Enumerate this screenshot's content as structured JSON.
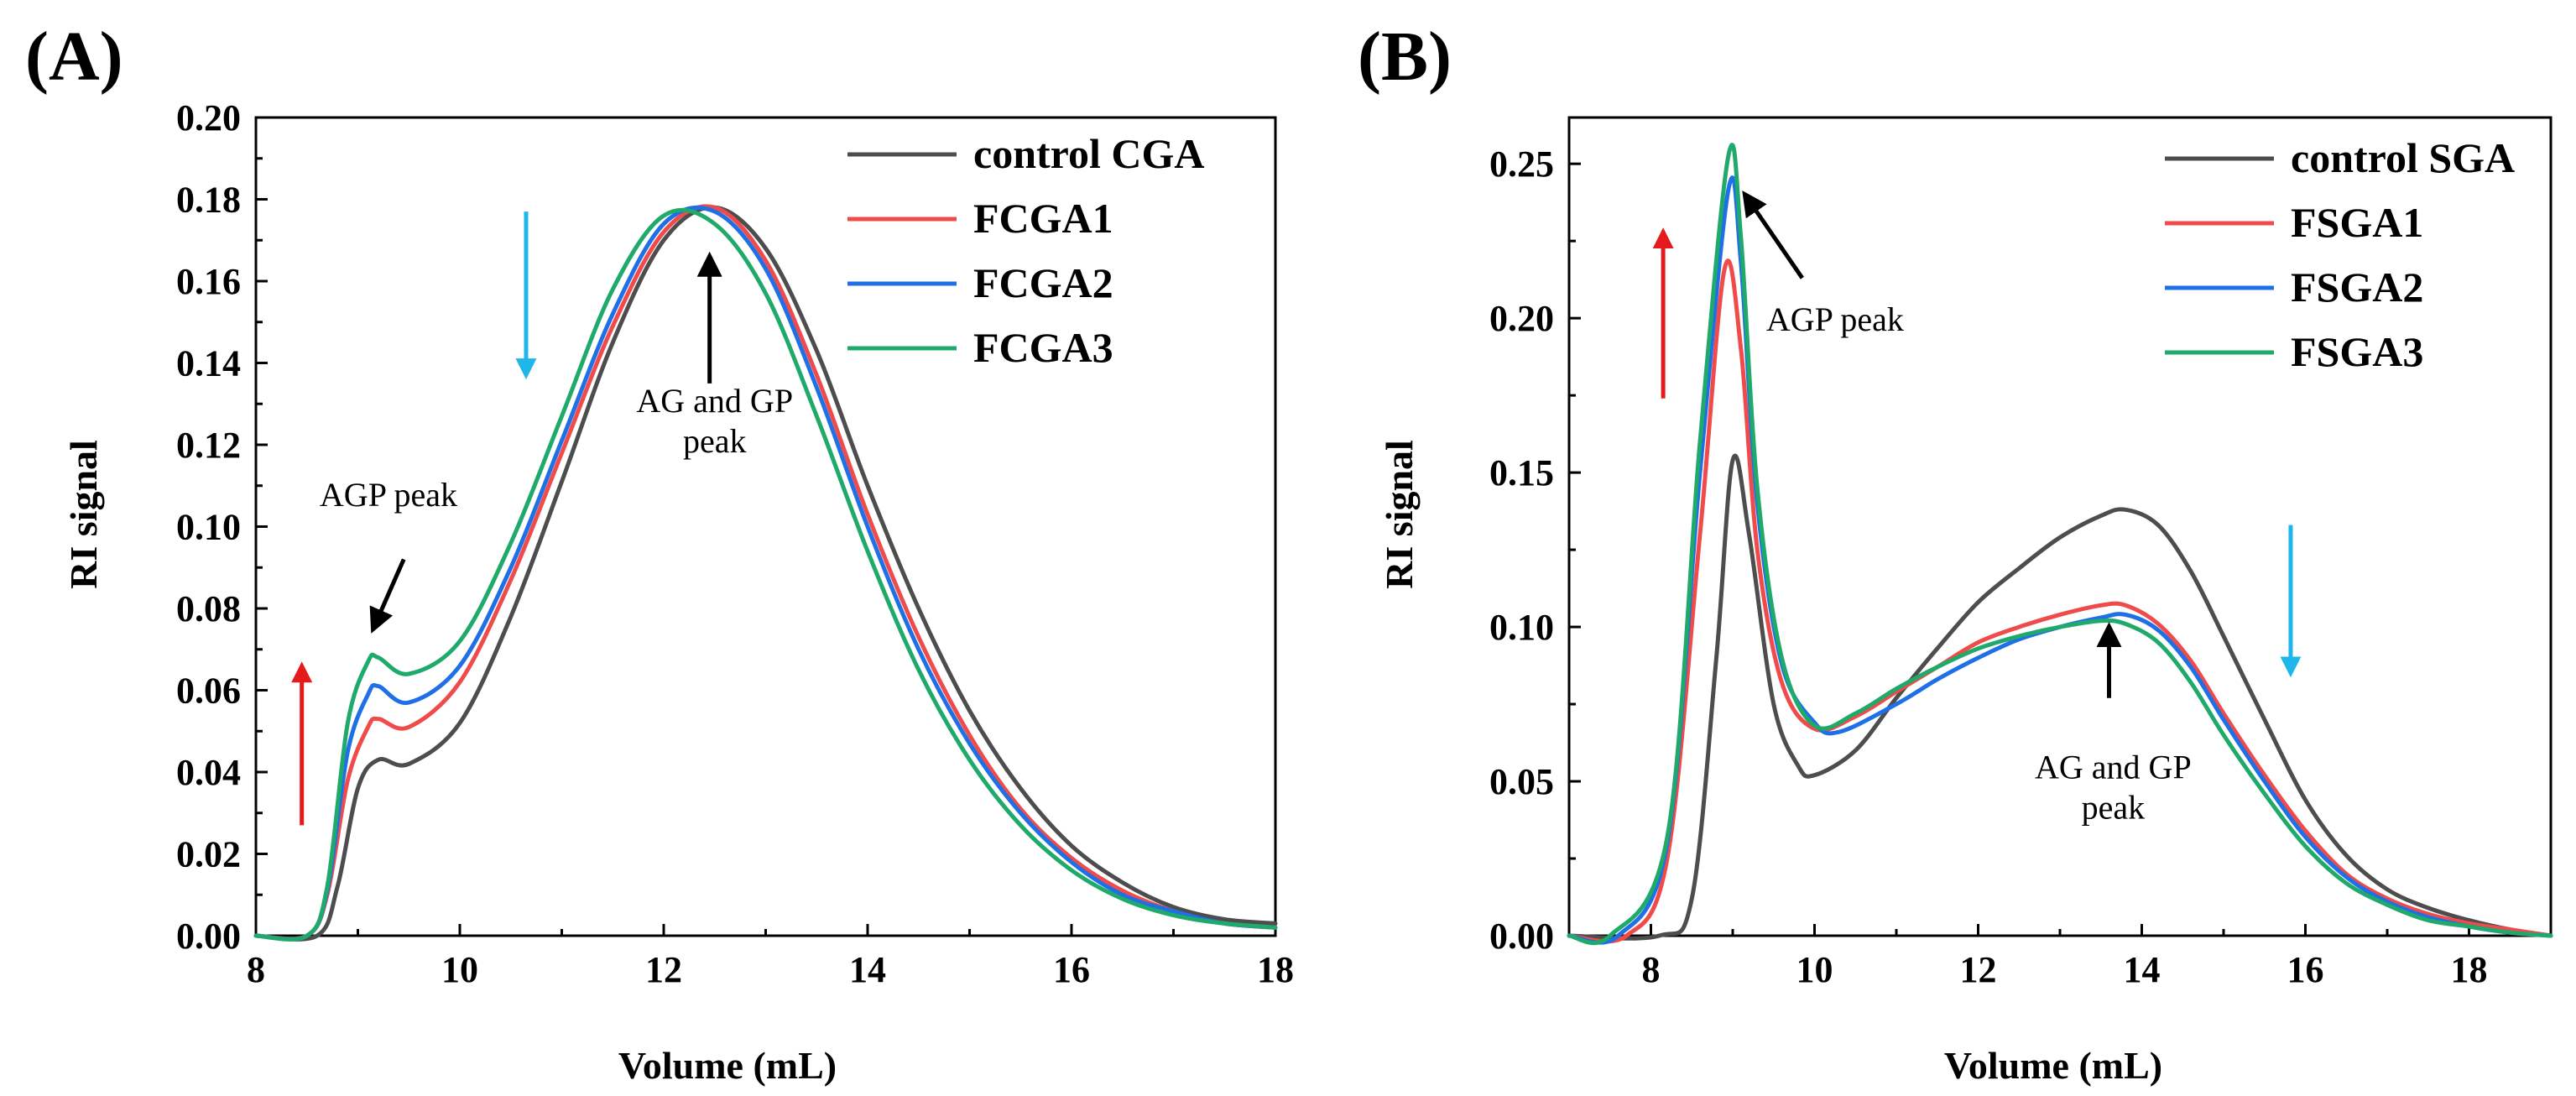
{
  "chart_data": [
    {
      "type": "line",
      "panel": "(A)",
      "xlabel": "Volume (mL)",
      "ylabel": "RI signal",
      "xlim": [
        8,
        18
      ],
      "ylim": [
        0,
        0.2
      ],
      "xticks": [
        8,
        10,
        12,
        14,
        16,
        18
      ],
      "xtick_labels": [
        "8",
        "10",
        "12",
        "14",
        "16",
        "18"
      ],
      "yticks": [
        0,
        0.02,
        0.04,
        0.06,
        0.08,
        0.1,
        0.12,
        0.14,
        0.16,
        0.18,
        0.2
      ],
      "ytick_labels": [
        "0.00",
        "0.02",
        "0.04",
        "0.06",
        "0.08",
        "0.10",
        "0.12",
        "0.14",
        "0.16",
        "0.18",
        "0.20"
      ],
      "legend_position": "top-right",
      "series": [
        {
          "name": "control CGA",
          "color": "#4d4d4d",
          "x": [
            8.0,
            8.6,
            8.8,
            9.0,
            9.2,
            9.5,
            10.0,
            10.5,
            11.0,
            11.5,
            12.0,
            12.5,
            13.0,
            13.5,
            14.0,
            14.5,
            15.0,
            15.5,
            16.0,
            16.5,
            17.0,
            17.5,
            18.0
          ],
          "y": [
            0.0,
            0.0,
            0.012,
            0.036,
            0.043,
            0.042,
            0.052,
            0.078,
            0.111,
            0.145,
            0.17,
            0.178,
            0.168,
            0.143,
            0.11,
            0.08,
            0.055,
            0.036,
            0.022,
            0.013,
            0.007,
            0.004,
            0.003
          ]
        },
        {
          "name": "FCGA1",
          "color": "#ef4b4b",
          "x": [
            8.0,
            8.5,
            8.7,
            8.9,
            9.1,
            9.2,
            9.5,
            10.0,
            10.5,
            11.0,
            11.5,
            12.0,
            12.5,
            13.0,
            13.5,
            14.0,
            14.5,
            15.0,
            15.5,
            16.0,
            16.5,
            17.0,
            17.5,
            18.0
          ],
          "y": [
            0.0,
            0.0,
            0.01,
            0.038,
            0.051,
            0.053,
            0.051,
            0.062,
            0.087,
            0.118,
            0.149,
            0.172,
            0.178,
            0.165,
            0.137,
            0.103,
            0.073,
            0.049,
            0.031,
            0.019,
            0.011,
            0.006,
            0.003,
            0.002
          ]
        },
        {
          "name": "FCGA2",
          "color": "#1f6fe6",
          "x": [
            8.0,
            8.5,
            8.7,
            8.9,
            9.1,
            9.2,
            9.5,
            10.0,
            10.5,
            11.0,
            11.5,
            12.0,
            12.5,
            13.0,
            13.5,
            14.0,
            14.5,
            15.0,
            15.5,
            16.0,
            16.5,
            17.0,
            17.5,
            18.0
          ],
          "y": [
            0.0,
            0.0,
            0.011,
            0.045,
            0.059,
            0.061,
            0.057,
            0.066,
            0.09,
            0.121,
            0.152,
            0.174,
            0.177,
            0.163,
            0.134,
            0.1,
            0.07,
            0.047,
            0.03,
            0.018,
            0.01,
            0.006,
            0.003,
            0.002
          ]
        },
        {
          "name": "FCGA3",
          "color": "#1faa6b",
          "x": [
            8.0,
            8.5,
            8.7,
            8.9,
            9.1,
            9.2,
            9.5,
            10.0,
            10.5,
            11.0,
            11.5,
            12.0,
            12.5,
            13.0,
            13.5,
            14.0,
            14.5,
            15.0,
            15.5,
            16.0,
            16.5,
            17.0,
            17.5,
            18.0
          ],
          "y": [
            0.0,
            0.0,
            0.012,
            0.052,
            0.067,
            0.068,
            0.064,
            0.072,
            0.096,
            0.127,
            0.158,
            0.176,
            0.174,
            0.157,
            0.127,
            0.094,
            0.065,
            0.043,
            0.027,
            0.016,
            0.009,
            0.005,
            0.003,
            0.002
          ]
        }
      ],
      "annotations": [
        {
          "text_lines": [
            "AGP peak"
          ],
          "x": 9.3,
          "y": 0.105
        },
        {
          "text_lines": [
            "AG and GP",
            "peak"
          ],
          "x": 12.5,
          "y": 0.128
        }
      ],
      "indicator_arrows": [
        {
          "color": "#e41a1c",
          "direction": "up",
          "x": 8.45,
          "y_from": 0.027,
          "y_to": 0.066
        },
        {
          "color": "#1fb7ea",
          "direction": "down",
          "x": 10.65,
          "y_from": 0.177,
          "y_to": 0.137
        },
        {
          "color": "#000000",
          "direction": "down-left",
          "x_from": 9.45,
          "y_from": 0.092,
          "x_to": 9.15,
          "y_to": 0.075
        },
        {
          "color": "#000000",
          "direction": "up",
          "x": 12.45,
          "y_from": 0.135,
          "y_to": 0.166
        }
      ]
    },
    {
      "type": "line",
      "panel": "(B)",
      "xlabel": "Volume (mL)",
      "ylabel": "RI signal",
      "xlim": [
        7,
        19
      ],
      "ylim": [
        0,
        0.265
      ],
      "xticks": [
        8,
        10,
        12,
        14,
        16,
        18
      ],
      "xtick_labels": [
        "8",
        "10",
        "12",
        "14",
        "16",
        "18"
      ],
      "yticks": [
        0,
        0.05,
        0.1,
        0.15,
        0.2,
        0.25
      ],
      "ytick_labels": [
        "0.00",
        "0.05",
        "0.10",
        "0.15",
        "0.20",
        "0.25"
      ],
      "legend_position": "top-right",
      "series": [
        {
          "name": "control SGA",
          "color": "#4d4d4d",
          "x": [
            7.0,
            8.1,
            8.5,
            8.8,
            9.0,
            9.2,
            9.5,
            9.8,
            10.0,
            10.5,
            11.0,
            11.5,
            12.0,
            12.5,
            13.0,
            13.5,
            13.8,
            14.2,
            14.6,
            15.0,
            15.5,
            16.0,
            16.5,
            17.0,
            17.5,
            18.0,
            18.5,
            19.0
          ],
          "y": [
            0.0,
            0.0,
            0.012,
            0.09,
            0.154,
            0.13,
            0.075,
            0.055,
            0.052,
            0.06,
            0.077,
            0.093,
            0.108,
            0.119,
            0.129,
            0.136,
            0.138,
            0.133,
            0.118,
            0.097,
            0.07,
            0.044,
            0.026,
            0.015,
            0.009,
            0.005,
            0.002,
            0.0
          ]
        },
        {
          "name": "FSGA1",
          "color": "#ef4b4b",
          "x": [
            7.0,
            7.7,
            8.2,
            8.6,
            8.9,
            9.1,
            9.3,
            9.6,
            10.0,
            10.5,
            11.0,
            11.5,
            12.0,
            12.5,
            13.0,
            13.5,
            13.8,
            14.2,
            14.6,
            15.0,
            15.5,
            16.0,
            16.5,
            17.0,
            17.5,
            18.0,
            18.5,
            19.0
          ],
          "y": [
            0.0,
            0.0,
            0.025,
            0.13,
            0.216,
            0.19,
            0.125,
            0.082,
            0.067,
            0.071,
            0.079,
            0.087,
            0.095,
            0.1,
            0.104,
            0.107,
            0.107,
            0.101,
            0.089,
            0.072,
            0.052,
            0.034,
            0.02,
            0.012,
            0.007,
            0.004,
            0.002,
            0.0
          ]
        },
        {
          "name": "FSGA2",
          "color": "#1f6fe6",
          "x": [
            7.0,
            7.6,
            8.2,
            8.6,
            8.95,
            9.1,
            9.3,
            9.6,
            10.0,
            10.3,
            11.0,
            11.5,
            12.0,
            12.5,
            13.0,
            13.5,
            13.8,
            14.2,
            14.6,
            15.0,
            15.5,
            16.0,
            16.5,
            17.0,
            17.5,
            18.0,
            18.5,
            19.0
          ],
          "y": [
            0.0,
            0.0,
            0.03,
            0.15,
            0.242,
            0.218,
            0.14,
            0.088,
            0.069,
            0.066,
            0.075,
            0.083,
            0.09,
            0.096,
            0.1,
            0.103,
            0.104,
            0.099,
            0.087,
            0.07,
            0.05,
            0.032,
            0.019,
            0.011,
            0.006,
            0.003,
            0.001,
            0.0
          ]
        },
        {
          "name": "FSGA3",
          "color": "#1faa6b",
          "x": [
            7.0,
            7.5,
            8.2,
            8.6,
            8.95,
            9.1,
            9.3,
            9.6,
            10.0,
            10.5,
            11.0,
            11.5,
            12.0,
            12.5,
            13.0,
            13.5,
            13.8,
            14.2,
            14.6,
            15.0,
            15.5,
            16.0,
            16.5,
            17.0,
            17.5,
            18.0,
            18.5,
            19.0
          ],
          "y": [
            0.0,
            0.0,
            0.032,
            0.16,
            0.253,
            0.226,
            0.145,
            0.09,
            0.068,
            0.072,
            0.08,
            0.087,
            0.093,
            0.097,
            0.1,
            0.102,
            0.101,
            0.095,
            0.082,
            0.065,
            0.046,
            0.029,
            0.017,
            0.01,
            0.005,
            0.003,
            0.001,
            0.0
          ]
        }
      ],
      "annotations": [
        {
          "text_lines": [
            "AGP peak"
          ],
          "x": 10.25,
          "y": 0.196
        },
        {
          "text_lines": [
            "AG and GP",
            "peak"
          ],
          "x": 13.65,
          "y": 0.051
        }
      ],
      "indicator_arrows": [
        {
          "color": "#e41a1c",
          "direction": "up",
          "x": 8.15,
          "y_from": 0.174,
          "y_to": 0.228
        },
        {
          "color": "#1fb7ea",
          "direction": "down",
          "x": 15.82,
          "y_from": 0.133,
          "y_to": 0.085
        },
        {
          "color": "#000000",
          "direction": "up-left",
          "x_from": 9.85,
          "y_from": 0.213,
          "x_to": 9.15,
          "y_to": 0.24
        },
        {
          "color": "#000000",
          "direction": "up",
          "x": 13.6,
          "y_from": 0.077,
          "y_to": 0.1
        }
      ]
    }
  ]
}
